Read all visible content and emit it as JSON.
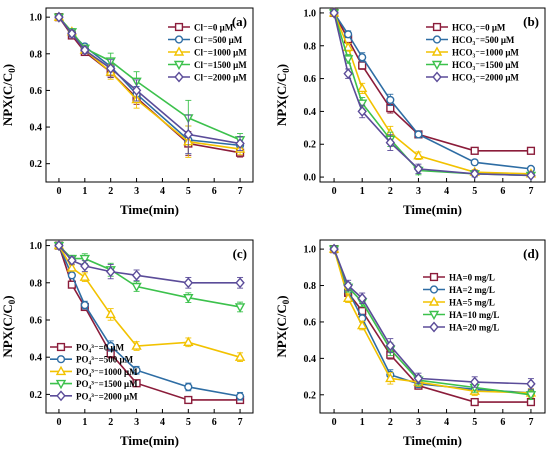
{
  "chart_data": [
    {
      "type": "line",
      "panel_label": "(a)",
      "xlabel": "Time(min)",
      "ylabel": "NPX(C/C",
      "ylabel_sub": "0",
      "ylabel_close": ")",
      "x": [
        0,
        0.5,
        1,
        2,
        3,
        5,
        7
      ],
      "xlim": [
        -0.5,
        7.5
      ],
      "ylim": [
        0.1,
        1.05
      ],
      "xticks": [
        "0",
        "1",
        "2",
        "3",
        "4",
        "5",
        "6",
        "7"
      ],
      "yticks": [
        "0.2",
        "0.4",
        "0.6",
        "0.8",
        "1.0"
      ],
      "legend_position": "top-right",
      "series": [
        {
          "name": "Cl⁻=0 μM",
          "color": "#8B1C3A",
          "marker": "square",
          "values": [
            1.0,
            0.9,
            0.81,
            0.7,
            0.56,
            0.31,
            0.26
          ]
        },
        {
          "name": "Cl⁻=500 μM",
          "color": "#2E6DA4",
          "marker": "circle",
          "values": [
            1.0,
            0.91,
            0.84,
            0.73,
            0.58,
            0.33,
            0.3
          ]
        },
        {
          "name": "Cl⁻=1000 μM",
          "color": "#F2C200",
          "marker": "triangle-up",
          "values": [
            1.0,
            0.92,
            0.82,
            0.7,
            0.55,
            0.32,
            0.28
          ]
        },
        {
          "name": "Cl⁻=1500 μM",
          "color": "#3CC14C",
          "marker": "triangle-down",
          "values": [
            1.0,
            0.92,
            0.83,
            0.76,
            0.65,
            0.45,
            0.33
          ]
        },
        {
          "name": "Cl⁻=2000 μM",
          "color": "#5B4C99",
          "marker": "diamond",
          "values": [
            1.0,
            0.91,
            0.82,
            0.72,
            0.6,
            0.36,
            0.31
          ]
        }
      ]
    },
    {
      "type": "line",
      "panel_label": "(b)",
      "xlabel": "Time(min)",
      "ylabel": "NPX(C/C",
      "ylabel_sub": "0",
      "ylabel_close": ")",
      "x": [
        0,
        0.5,
        1,
        2,
        3,
        5,
        7
      ],
      "xlim": [
        -0.5,
        7.5
      ],
      "ylim": [
        -0.03,
        1.03
      ],
      "xticks": [
        "0",
        "1",
        "2",
        "3",
        "4",
        "5",
        "6",
        "7"
      ],
      "yticks": [
        "0.0",
        "0.2",
        "0.4",
        "0.6",
        "0.8",
        "1.0"
      ],
      "legend_position": "top-right",
      "series": [
        {
          "name": "HCO₃⁻=0 μM",
          "color": "#8B1C3A",
          "marker": "square",
          "values": [
            1.0,
            0.84,
            0.68,
            0.42,
            0.26,
            0.16,
            0.16
          ]
        },
        {
          "name": "HCO₃⁻=500 μM",
          "color": "#2E6DA4",
          "marker": "circle",
          "values": [
            1.0,
            0.87,
            0.73,
            0.47,
            0.26,
            0.09,
            0.05
          ]
        },
        {
          "name": "HCO₃⁻=1000 μM",
          "color": "#F2C200",
          "marker": "triangle-up",
          "values": [
            1.0,
            0.79,
            0.54,
            0.27,
            0.13,
            0.03,
            0.02
          ]
        },
        {
          "name": "HCO₃⁻=1500 μM",
          "color": "#3CC14C",
          "marker": "triangle-down",
          "values": [
            1.0,
            0.72,
            0.45,
            0.23,
            0.04,
            0.02,
            0.01
          ]
        },
        {
          "name": "HCO₃⁻=2000 μM",
          "color": "#5B4C99",
          "marker": "diamond",
          "values": [
            1.0,
            0.63,
            0.4,
            0.21,
            0.05,
            0.02,
            0.01
          ]
        }
      ]
    },
    {
      "type": "line",
      "panel_label": "(c)",
      "xlabel": "Time(min)",
      "ylabel": "NPX(C/C",
      "ylabel_sub": "0",
      "ylabel_close": ")",
      "x": [
        0,
        0.5,
        1,
        2,
        3,
        5,
        7
      ],
      "xlim": [
        -0.5,
        7.5
      ],
      "ylim": [
        0.1,
        1.03
      ],
      "xticks": [
        "0",
        "1",
        "2",
        "3",
        "4",
        "5",
        "6",
        "7"
      ],
      "yticks": [
        "0.2",
        "0.4",
        "0.6",
        "0.8",
        "1.0"
      ],
      "legend_position": "bottom-left",
      "series": [
        {
          "name": "PO₄³⁻=0 μM",
          "color": "#8B1C3A",
          "marker": "square",
          "values": [
            1.0,
            0.79,
            0.67,
            0.42,
            0.26,
            0.17,
            0.17
          ]
        },
        {
          "name": "PO₄³⁻=500 μM",
          "color": "#2E6DA4",
          "marker": "circle",
          "values": [
            1.0,
            0.84,
            0.68,
            0.46,
            0.33,
            0.24,
            0.19
          ]
        },
        {
          "name": "PO₄³⁻=1000 μM",
          "color": "#F2C200",
          "marker": "triangle-up",
          "values": [
            1.0,
            0.88,
            0.83,
            0.63,
            0.46,
            0.48,
            0.4
          ]
        },
        {
          "name": "PO₄³⁻=1500 μM",
          "color": "#3CC14C",
          "marker": "triangle-down",
          "values": [
            1.0,
            0.93,
            0.93,
            0.87,
            0.78,
            0.72,
            0.67
          ]
        },
        {
          "name": "PO₄³⁻=2000 μM",
          "color": "#5B4C99",
          "marker": "diamond",
          "values": [
            1.0,
            0.92,
            0.89,
            0.86,
            0.84,
            0.8,
            0.8
          ]
        }
      ]
    },
    {
      "type": "line",
      "panel_label": "(d)",
      "xlabel": "Time(min)",
      "ylabel": "NPX(C/C",
      "ylabel_sub": "0",
      "ylabel_close": ")",
      "x": [
        0,
        0.5,
        1,
        2,
        3,
        5,
        7
      ],
      "xlim": [
        -0.5,
        7.5
      ],
      "ylim": [
        0.1,
        1.05
      ],
      "xticks": [
        "0",
        "1",
        "2",
        "3",
        "4",
        "5",
        "6",
        "7"
      ],
      "yticks": [
        "0.2",
        "0.4",
        "0.6",
        "0.8",
        "1.0"
      ],
      "legend_position": "top-right",
      "series": [
        {
          "name": "HA=0 mg/L",
          "color": "#8B1C3A",
          "marker": "square",
          "values": [
            1.0,
            0.76,
            0.66,
            0.42,
            0.25,
            0.16,
            0.16
          ]
        },
        {
          "name": "HA=2 mg/L",
          "color": "#2E6DA4",
          "marker": "circle",
          "values": [
            1.0,
            0.77,
            0.62,
            0.31,
            0.26,
            0.23,
            0.21
          ]
        },
        {
          "name": "HA=5 mg/L",
          "color": "#F2C200",
          "marker": "triangle-up",
          "values": [
            1.0,
            0.73,
            0.58,
            0.29,
            0.27,
            0.22,
            0.21
          ]
        },
        {
          "name": "HA=10 mg/L",
          "color": "#3CC14C",
          "marker": "triangle-down",
          "values": [
            1.0,
            0.79,
            0.71,
            0.45,
            0.28,
            0.24,
            0.2
          ]
        },
        {
          "name": "HA=20 mg/L",
          "color": "#5B4C99",
          "marker": "diamond",
          "values": [
            1.0,
            0.8,
            0.73,
            0.47,
            0.29,
            0.27,
            0.26
          ]
        }
      ]
    }
  ]
}
